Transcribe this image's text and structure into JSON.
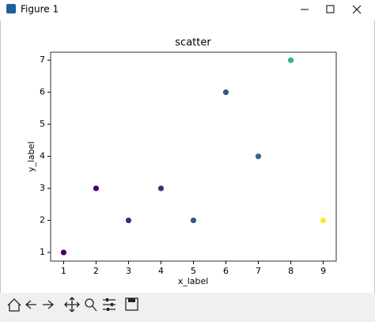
{
  "window": {
    "title": "Figure 1"
  },
  "chart_data": {
    "type": "scatter",
    "title": "scatter",
    "x_label": "x_label",
    "y_label": "y_label",
    "x": [
      1,
      2,
      3,
      4,
      5,
      6,
      7,
      8,
      9
    ],
    "y": [
      1,
      3,
      2,
      3,
      2,
      6,
      4,
      7,
      2
    ],
    "colors": [
      "#440154",
      "#46085c",
      "#482878",
      "#472d7b",
      "#3b528b",
      "#3b528b",
      "#31688e",
      "#35b779",
      "#fde725"
    ],
    "xlim": [
      0.6,
      9.4
    ],
    "ylim": [
      0.73,
      7.25
    ],
    "xticks": [
      1,
      2,
      3,
      4,
      5,
      6,
      7,
      8,
      9
    ],
    "yticks": [
      1,
      2,
      3,
      4,
      5,
      6,
      7
    ]
  }
}
